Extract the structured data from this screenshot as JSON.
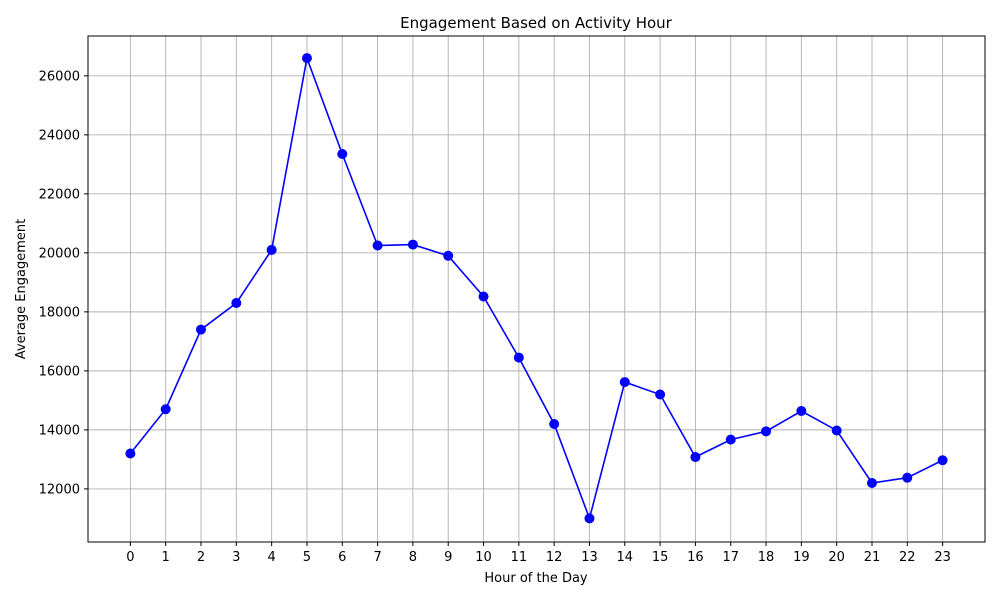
{
  "chart_data": {
    "type": "line",
    "title": "Engagement Based on Activity Hour",
    "xlabel": "Hour of the Day",
    "ylabel": "Average Engagement",
    "x": [
      0,
      1,
      2,
      3,
      4,
      5,
      6,
      7,
      8,
      9,
      10,
      11,
      12,
      13,
      14,
      15,
      16,
      17,
      18,
      19,
      20,
      21,
      22,
      23
    ],
    "x_tick_labels": [
      "0",
      "1",
      "2",
      "3",
      "4",
      "5",
      "6",
      "7",
      "8",
      "9",
      "10",
      "11",
      "12",
      "13",
      "14",
      "15",
      "16",
      "17",
      "18",
      "19",
      "20",
      "21",
      "22",
      "23"
    ],
    "series": [
      {
        "values": [
          13200,
          14700,
          17400,
          18300,
          20100,
          26600,
          23350,
          20250,
          20280,
          19900,
          18520,
          16450,
          14200,
          11000,
          15620,
          15200,
          13080,
          13670,
          13950,
          14640,
          13980,
          12200,
          12380,
          12970
        ],
        "color": "#0000ff",
        "marker": "circle"
      }
    ],
    "xlim": [
      -1.2,
      24.2
    ],
    "ylim": [
      10200,
      27350
    ],
    "y_ticks": [
      12000,
      14000,
      16000,
      18000,
      20000,
      22000,
      24000,
      26000
    ],
    "y_tick_labels": [
      "12000",
      "14000",
      "16000",
      "18000",
      "20000",
      "22000",
      "24000",
      "26000"
    ],
    "grid": true
  }
}
